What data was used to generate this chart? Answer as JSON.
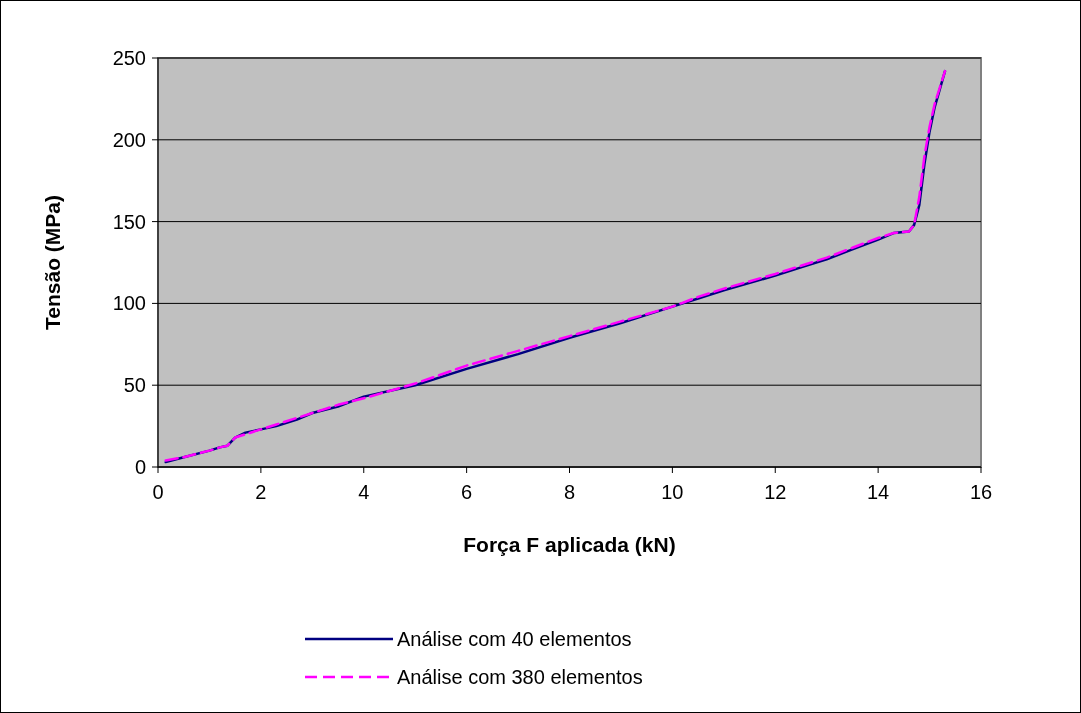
{
  "chart_data": {
    "type": "line",
    "xlabel": "Força F aplicada (kN)",
    "ylabel": "Tensão (MPa)",
    "xlim": [
      0,
      16
    ],
    "xticks": [
      0,
      2,
      4,
      6,
      8,
      10,
      12,
      14,
      16
    ],
    "ylim": [
      0,
      250
    ],
    "yticks": [
      0,
      50,
      100,
      150,
      200,
      250
    ],
    "grid": "y",
    "legend": "bottom",
    "series": [
      {
        "name": "Análise com 40 elementos",
        "color": "#000080",
        "line_style": "solid",
        "x": [
          0.15,
          0.5,
          1,
          1.2,
          1.35,
          1.5,
          1.7,
          2,
          2.3,
          2.7,
          3,
          3.5,
          4,
          5,
          6,
          7,
          8,
          9,
          10,
          10.5,
          11,
          12,
          12.5,
          13,
          13.5,
          14,
          14.3,
          14.6,
          14.7,
          14.8,
          14.9,
          15,
          15.1,
          15.3
        ],
        "values": [
          3,
          6,
          10,
          12,
          13,
          18,
          21,
          23,
          25,
          29,
          33,
          37,
          43,
          50,
          60,
          69,
          79,
          88,
          98,
          103,
          108,
          117,
          122,
          127,
          133,
          139,
          143,
          144,
          148,
          160,
          185,
          205,
          220,
          242
        ]
      },
      {
        "name": "Análise com 380 elementos",
        "color": "#ff00ff",
        "line_style": "dashed",
        "x": [
          0.15,
          0.5,
          1,
          1.2,
          1.35,
          1.5,
          1.7,
          2,
          2.3,
          2.7,
          3,
          3.5,
          4,
          5,
          6,
          7,
          8,
          9,
          10,
          10.5,
          11,
          12,
          12.5,
          13,
          13.5,
          14,
          14.3,
          14.6,
          14.7,
          14.8,
          14.9,
          15,
          15.1,
          15.3
        ],
        "values": [
          4,
          6,
          10,
          12,
          13,
          18,
          20,
          23,
          26,
          30,
          33,
          38,
          42,
          51,
          62,
          71,
          80,
          89,
          98,
          104,
          109,
          118,
          123,
          128,
          134,
          140,
          143,
          144,
          148,
          165,
          190,
          208,
          222,
          242
        ]
      }
    ]
  }
}
